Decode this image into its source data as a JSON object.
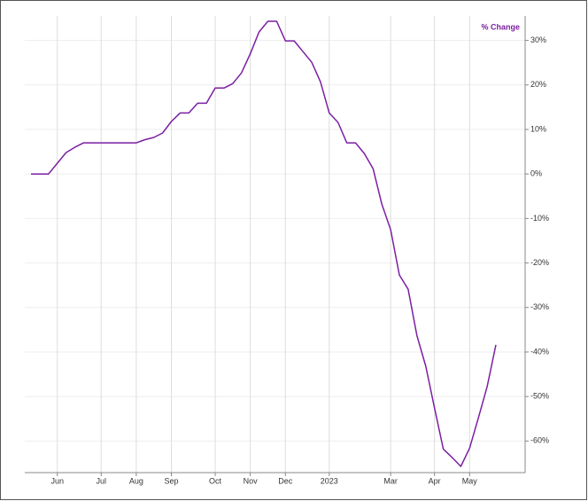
{
  "chart_data": {
    "type": "line",
    "categories": [
      null,
      null,
      null,
      "Jun",
      null,
      null,
      null,
      null,
      "Jul",
      null,
      null,
      null,
      "Aug",
      null,
      null,
      null,
      "Sep",
      null,
      null,
      null,
      null,
      "Oct",
      null,
      null,
      null,
      "Nov",
      null,
      null,
      null,
      "Dec",
      null,
      null,
      null,
      null,
      "2023",
      null,
      null,
      null,
      null,
      null,
      null,
      "Mar",
      null,
      null,
      null,
      null,
      "Apr",
      null,
      null,
      null,
      "May",
      null,
      null,
      null
    ],
    "series": [
      {
        "name": "% Change",
        "color": "#7b1fa2",
        "values": [
          0,
          0,
          0,
          2.4,
          4.8,
          6.0,
          7,
          7,
          7,
          7,
          7,
          7,
          7,
          7.7,
          8.2,
          9.2,
          11.8,
          13.7,
          13.7,
          15.9,
          15.9,
          19.3,
          19.3,
          20.3,
          22.7,
          27,
          31.9,
          34.3,
          34.3,
          29.9,
          29.9,
          27.5,
          25.1,
          20.7,
          13.7,
          11.6,
          7,
          7,
          4.6,
          1.2,
          -6.8,
          -12.5,
          -22.7,
          -25.9,
          -36.3,
          -43.2,
          -52.6,
          -61.8,
          -63.7,
          -65.7,
          -61.6,
          -54.8,
          -47.8,
          -38.4
        ]
      }
    ],
    "ylim": [
      -67.1,
      35.5
    ],
    "yticks": [
      {
        "value": 30,
        "label": "30%"
      },
      {
        "value": 20,
        "label": "20%"
      },
      {
        "value": 10,
        "label": "10%"
      },
      {
        "value": 0,
        "label": "0%"
      },
      {
        "value": -10,
        "label": "-10%"
      },
      {
        "value": -20,
        "label": "-20%"
      },
      {
        "value": -30,
        "label": "-30%"
      },
      {
        "value": -40,
        "label": "-40%"
      },
      {
        "value": -50,
        "label": "-50%"
      },
      {
        "value": -60,
        "label": "-60%"
      }
    ],
    "grid": true,
    "legend": "top-right"
  }
}
